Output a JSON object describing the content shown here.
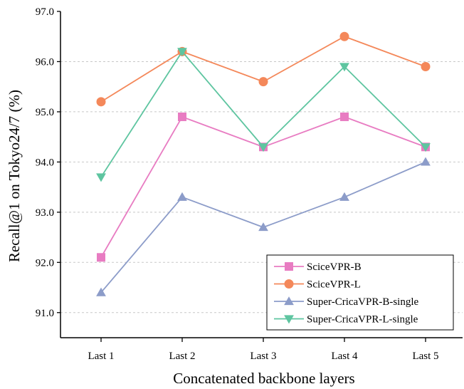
{
  "chart_data": {
    "type": "line",
    "title": "",
    "xlabel": "Concatenated backbone layers",
    "ylabel": "Recall@1 on Tokyo24/7 (%)",
    "categories": [
      "Last 1",
      "Last 2",
      "Last 3",
      "Last 4",
      "Last 5"
    ],
    "ylim": [
      90.5,
      97.0
    ],
    "yticks": [
      "91.0",
      "92.0",
      "93.0",
      "94.0",
      "95.0",
      "96.0",
      "97.0"
    ],
    "grid": "horizontal-dashed",
    "legend_position": "bottom-right",
    "series": [
      {
        "name": "SciceVPR-B",
        "values": [
          92.1,
          94.9,
          94.3,
          94.9,
          94.3
        ],
        "color": "#e87cc2",
        "marker": "square"
      },
      {
        "name": "SciceVPR-L",
        "values": [
          95.2,
          96.2,
          95.6,
          96.5,
          95.9
        ],
        "color": "#f4885a",
        "marker": "circle"
      },
      {
        "name": "Super-CricaVPR-B-single",
        "values": [
          91.4,
          93.3,
          92.7,
          93.3,
          94.0
        ],
        "color": "#8c9cc9",
        "marker": "triangle-up"
      },
      {
        "name": "Super-CricaVPR-L-single",
        "values": [
          93.7,
          96.2,
          94.3,
          95.9,
          94.3
        ],
        "color": "#5ec5a0",
        "marker": "triangle-down"
      }
    ]
  }
}
